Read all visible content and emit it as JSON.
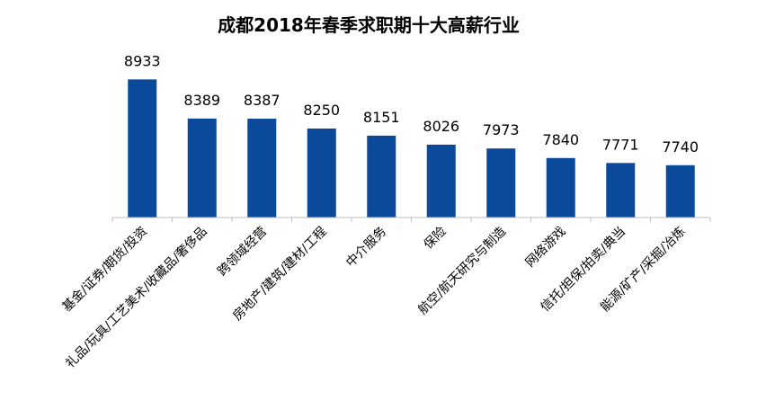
{
  "chart_data": {
    "type": "bar",
    "title": "成都2018年春季求职期十大高薪行业",
    "categories": [
      "基金/证券/期货/投资",
      "礼品/玩具/工艺美术/收藏品/奢侈品",
      "跨领域经营",
      "房地产/建筑/建材/工程",
      "中介服务",
      "保险",
      "航空/航天研究与制造",
      "网络游戏",
      "信托/担保/拍卖/典当",
      "能源/矿产/采掘/冶炼"
    ],
    "values": [
      8933,
      8389,
      8387,
      8250,
      8151,
      8026,
      7973,
      7840,
      7771,
      7740
    ],
    "value_labels": [
      "8933",
      "8389",
      "8387",
      "8250",
      "8151",
      "8026",
      "7973",
      "7840",
      "7771",
      "7740"
    ],
    "bar_color": "#0b4a9a",
    "axis_color": "#bfbfbf",
    "data_labels": true,
    "grid": false,
    "legend": "none"
  }
}
